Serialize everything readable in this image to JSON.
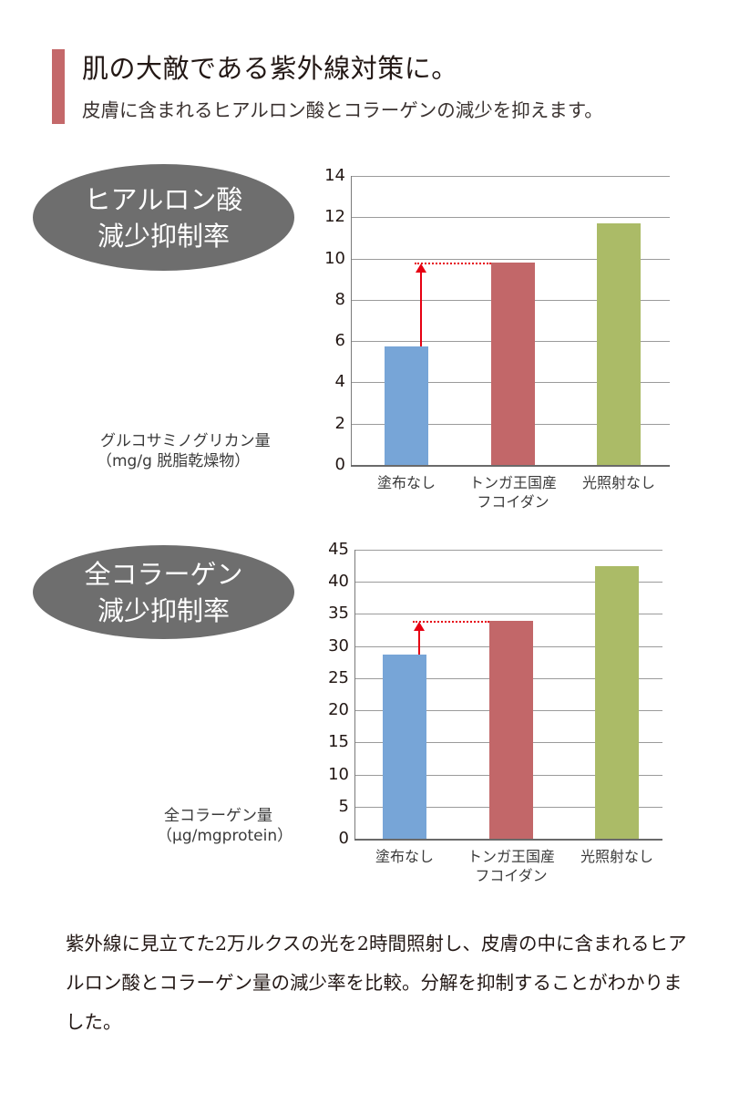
{
  "header": {
    "title": "肌の大敵である紫外線対策に。",
    "subtitle": "皮膚に含まれるヒアルロン酸とコラーゲンの減少を抑えます。",
    "accent_color": "#c4686a"
  },
  "sections": [
    {
      "badge_line1": "ヒアルロン酸",
      "badge_line2": "減少抑制率",
      "ylabel_line1": "グルコサミノグリカン量",
      "ylabel_line2": "（mg/g 脱脂乾燥物）"
    },
    {
      "badge_line1": "全コラーゲン",
      "badge_line2": "減少抑制率",
      "ylabel_line1": "全コラーゲン量",
      "ylabel_line2": "（μg/mgprotein）"
    }
  ],
  "categories": [
    {
      "line1": "塗布なし",
      "line2": ""
    },
    {
      "line1": "トンガ王国産",
      "line2": "フコイダン"
    },
    {
      "line1": "光照射なし",
      "line2": ""
    }
  ],
  "bar_colors": [
    "#77a5d7",
    "#c26769",
    "#abbb67"
  ],
  "annotation_color": "#e60012",
  "footer": {
    "text": "紫外線に見立てた2万ルクスの光を2時間照射し、皮膚の中に含まれるヒアルロン酸とコラーゲン量の減少率を比較。分解を抑制することがわかりました。"
  },
  "chart_data": [
    {
      "type": "bar",
      "title": "ヒアルロン酸 減少抑制率",
      "categories": [
        "塗布なし",
        "トンガ王国産フコイダン",
        "光照射なし"
      ],
      "values": [
        5.75,
        9.8,
        11.7
      ],
      "xlabel": "",
      "ylabel": "グルコサミノグリカン量（mg/g 脱脂乾燥物）",
      "ylim": [
        0,
        14
      ],
      "yticks": [
        0,
        2,
        4,
        6,
        8,
        10,
        12,
        14
      ],
      "grid": true,
      "legend": "none",
      "annotations": [
        "red arrow from 塗布なし bar top up to トンガ王国産フコイダン level with dotted reference line"
      ]
    },
    {
      "type": "bar",
      "title": "全コラーゲン 減少抑制率",
      "categories": [
        "塗布なし",
        "トンガ王国産フコイダン",
        "光照射なし"
      ],
      "values": [
        28.7,
        33.9,
        42.5
      ],
      "xlabel": "",
      "ylabel": "全コラーゲン量（μg/mgprotein）",
      "ylim": [
        0,
        45
      ],
      "yticks": [
        0,
        5,
        10,
        15,
        20,
        25,
        30,
        35,
        40,
        45
      ],
      "grid": true,
      "legend": "none",
      "annotations": [
        "red arrow from 塗布なし bar top up to トンガ王国産フコイダン level with dotted reference line"
      ]
    }
  ]
}
